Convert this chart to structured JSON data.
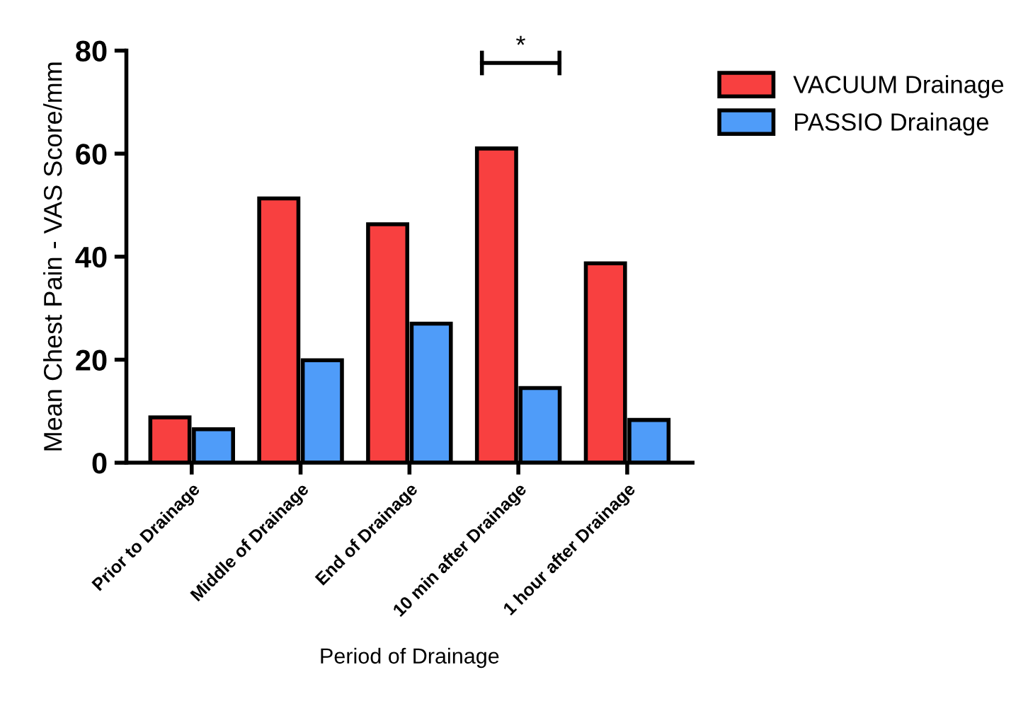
{
  "chart_data": {
    "type": "bar",
    "xlabel": "Period of Drainage",
    "ylabel": "Mean Chest Pain - VAS Score/mm",
    "categories": [
      "Prior to Drainage",
      "Middle of Drainage",
      "End of Drainage",
      "10 min after Drainage",
      "1 hour after Drainage"
    ],
    "series": [
      {
        "name": "VACUUM Drainage",
        "color": "#f84040",
        "values": [
          8.8,
          51.3,
          46.3,
          61.0,
          38.7
        ]
      },
      {
        "name": "PASSIO Drainage",
        "color": "#4f9cf9",
        "values": [
          6.5,
          19.9,
          27.0,
          14.5,
          8.3
        ]
      }
    ],
    "ylim": [
      0,
      80
    ],
    "yticks": [
      0,
      20,
      40,
      60,
      80
    ],
    "grid": false,
    "legend": "top right",
    "annotations": [
      "*"
    ]
  }
}
